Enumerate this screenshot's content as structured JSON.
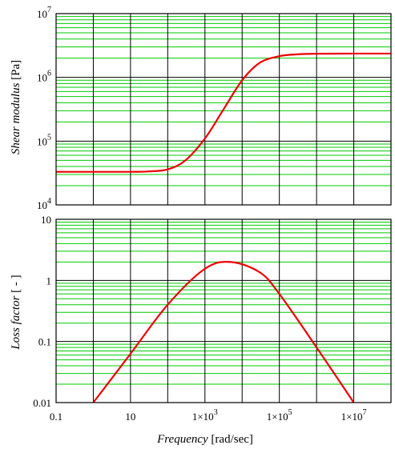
{
  "colors": {
    "major_grid": "#000000",
    "minor_grid": "#00cc00",
    "curve": "#ee0000",
    "frame": "#000000",
    "background": "#ffffff"
  },
  "chart_data": [
    {
      "type": "line",
      "id": "shear-modulus",
      "ylabel_italic": "Shear modulus",
      "ylabel_unit": "[Pa]",
      "xscale": "log",
      "yscale": "log",
      "xlim": [
        0.1,
        100000000
      ],
      "ylim": [
        10000,
        10000000
      ],
      "grid": true,
      "y_ticks": [
        {
          "value": 10000,
          "base": "10",
          "exp": "4"
        },
        {
          "value": 100000,
          "base": "10",
          "exp": "5"
        },
        {
          "value": 1000000,
          "base": "10",
          "exp": "6"
        },
        {
          "value": 10000000,
          "base": "10",
          "exp": "7"
        }
      ],
      "series": [
        {
          "x": [
            0.1,
            1,
            10,
            30,
            100,
            300,
            1000,
            3000,
            10000,
            30000,
            100000,
            300000,
            1000000,
            10000000,
            100000000
          ],
          "y": [
            33000,
            33000,
            33000,
            33500,
            36000,
            50000,
            110000,
            300000,
            900000,
            1700000,
            2150000,
            2300000,
            2350000,
            2360000,
            2360000
          ]
        }
      ]
    },
    {
      "type": "line",
      "id": "loss-factor",
      "ylabel_italic": "Loss factor",
      "ylabel_unit": "[ - ]",
      "xlabel_italic": "Frequency",
      "xlabel_unit": "[rad/sec]",
      "xscale": "log",
      "yscale": "log",
      "xlim": [
        0.1,
        100000000
      ],
      "ylim": [
        0.01,
        10
      ],
      "grid": true,
      "y_ticks": [
        {
          "value": 0.01,
          "label": "0.01"
        },
        {
          "value": 0.1,
          "label": "0.1"
        },
        {
          "value": 1,
          "label": "1"
        },
        {
          "value": 10,
          "label": "10"
        }
      ],
      "x_ticks": [
        {
          "value": 0.1,
          "label": "0.1"
        },
        {
          "value": 10,
          "label": "10"
        },
        {
          "value": 1000,
          "label": "1×10",
          "exp": "3"
        },
        {
          "value": 100000,
          "label": "1×10",
          "exp": "5"
        },
        {
          "value": 10000000,
          "label": "1×10",
          "exp": "7"
        }
      ],
      "series": [
        {
          "x": [
            1,
            10,
            100,
            1000,
            5000,
            30000,
            100000,
            1000000,
            10000000
          ],
          "y": [
            0.01,
            0.063,
            0.4,
            1.55,
            2.0,
            1.35,
            0.6,
            0.08,
            0.01
          ]
        }
      ]
    }
  ]
}
